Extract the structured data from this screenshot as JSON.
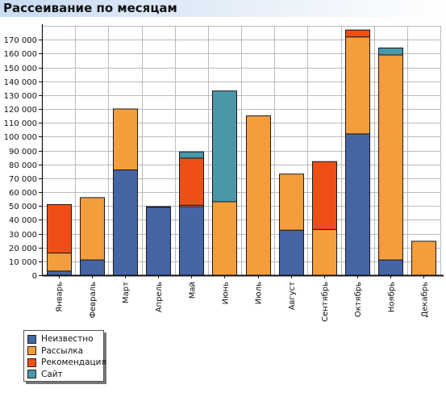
{
  "header": {
    "title": "Рассеивание по месяцам"
  },
  "colors": {
    "header_from": "#c9dcf2",
    "header_to": "#ffffff",
    "grid": "#bbbbbb",
    "axis": "#111111"
  },
  "chart_data": {
    "type": "bar",
    "stacked": true,
    "title": "",
    "xlabel": "",
    "ylabel": "",
    "ylim": [
      0,
      180000
    ],
    "ytick_step": 10000,
    "yticks": [
      "0",
      "10 000",
      "20 000",
      "30 000",
      "40 000",
      "50 000",
      "60 000",
      "70 000",
      "80 000",
      "90 000",
      "100 000",
      "110 000",
      "120 000",
      "130 000",
      "140 000",
      "150 000",
      "160 000",
      "170 000"
    ],
    "grid": true,
    "legend_position": "bottom-left",
    "categories": [
      "Январь",
      "Февраль",
      "Март",
      "Апрель",
      "Май",
      "Июнь",
      "Июль",
      "Август",
      "Сентябрь",
      "Октябрь",
      "Ноябрь",
      "Декабрь"
    ],
    "series": [
      {
        "name": "Неизвестно",
        "color": "#4565a5",
        "values": [
          3000,
          11000,
          76000,
          49000,
          49500,
          0,
          0,
          32500,
          0,
          102000,
          11000,
          0
        ]
      },
      {
        "name": "Рассылка",
        "color": "#f39d3c",
        "values": [
          13000,
          45000,
          44000,
          500,
          1000,
          53000,
          115000,
          40500,
          33000,
          70000,
          148000,
          24500
        ]
      },
      {
        "name": "Рекомендация",
        "color": "#ef4f16",
        "values": [
          35000,
          0,
          0,
          0,
          34000,
          0,
          0,
          0,
          49000,
          5000,
          0,
          0
        ]
      },
      {
        "name": "Сайт",
        "color": "#4a97a9",
        "values": [
          0,
          0,
          0,
          0,
          4500,
          80000,
          0,
          0,
          0,
          0,
          5000,
          0
        ]
      }
    ]
  }
}
